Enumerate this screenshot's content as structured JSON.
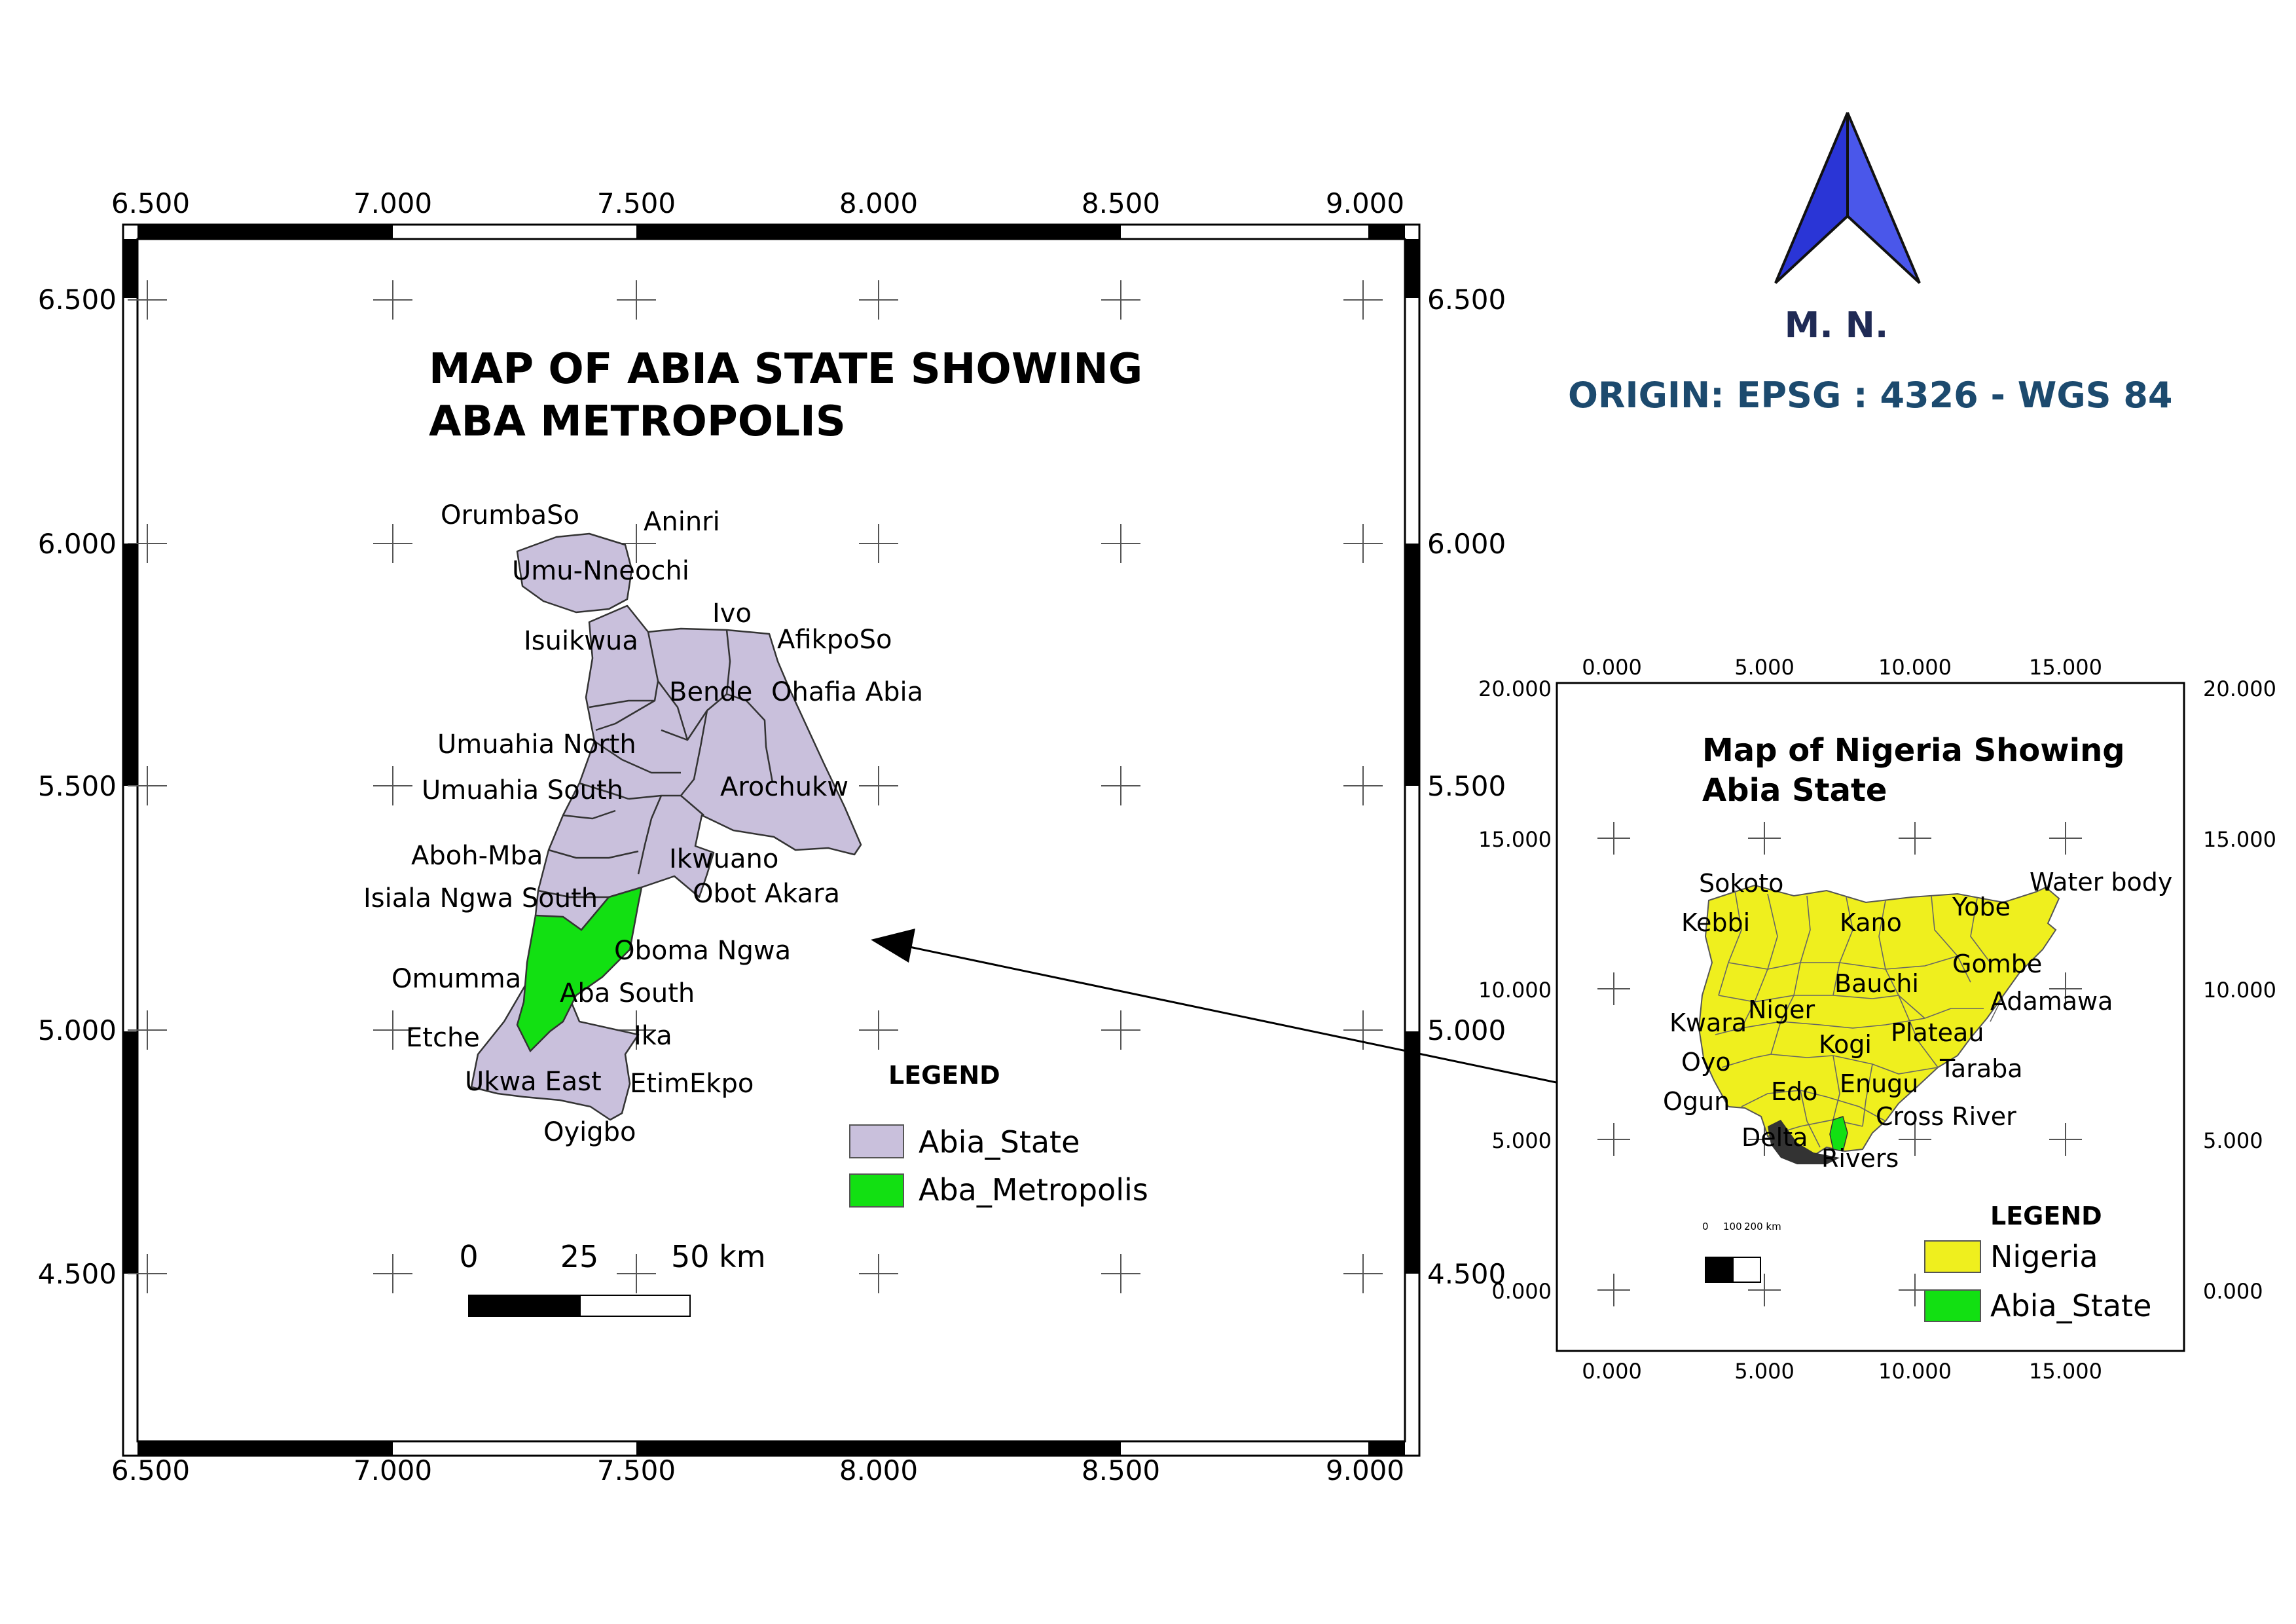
{
  "main_map": {
    "title_line1": "MAP OF ABIA STATE SHOWING",
    "title_line2": "ABA METROPOLIS",
    "x_ticks": [
      "6.500",
      "7.000",
      "7.500",
      "8.000",
      "8.500",
      "9.000"
    ],
    "y_ticks": [
      "6.500",
      "6.000",
      "5.500",
      "5.000",
      "4.500"
    ],
    "lga_labels": [
      "OrumbaSo",
      "Aninri",
      "Umu-Nneochi",
      "Ivo",
      "AfikpoSo",
      "Isuikwua",
      "Bende",
      "Ohafia Abia",
      "Umuahia North",
      "Umuahia South",
      "Arochukw",
      "Aboh-Mba",
      "Ikwuano",
      "Isiala Ngwa South",
      "Obot Akara",
      "Oboma Ngwa",
      "Omumma",
      "Aba South",
      "Etche",
      "Ika",
      "Ukwa East",
      "EtimEkpo",
      "Oyigbo"
    ],
    "legend": {
      "title": "LEGEND",
      "items": [
        {
          "label": "Abia_State",
          "color": "#c9c0dc"
        },
        {
          "label": "Aba_Metropolis",
          "color": "#12e012"
        }
      ]
    },
    "scalebar": {
      "labels": [
        "0",
        "25",
        "50 km"
      ]
    }
  },
  "north_arrow": {
    "label": "M. N.",
    "color": "#2a35d6"
  },
  "origin_text": "ORIGIN: EPSG : 4326 - WGS 84",
  "inset_map": {
    "title_line1": "Map of Nigeria Showing",
    "title_line2": "Abia State",
    "x_ticks": [
      "0.000",
      "5.000",
      "10.000",
      "15.000"
    ],
    "y_ticks": [
      "20.000",
      "15.000",
      "10.000",
      "5.000",
      "0.000"
    ],
    "state_labels": [
      "Sokoto",
      "Water body",
      "Kebbi",
      "Kano",
      "Yobe",
      "Gombe",
      "Bauchi",
      "Adamawa",
      "Kwara",
      "Niger",
      "Plateau",
      "Kogi",
      "Oyo",
      "Taraba",
      "Edo",
      "Enugu",
      "Ogun",
      "Cross River",
      "Delta",
      "Rivers"
    ],
    "legend": {
      "title": "LEGEND",
      "items": [
        {
          "label": "Nigeria",
          "color": "#efef1e"
        },
        {
          "label": "Abia_State",
          "color": "#12e012"
        }
      ]
    },
    "scalebar": {
      "labels": [
        "0",
        "100",
        "200 km"
      ]
    }
  }
}
